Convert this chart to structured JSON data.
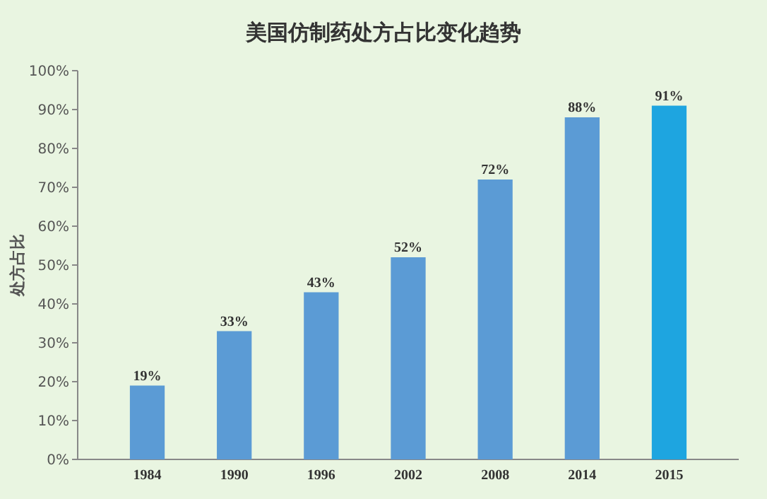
{
  "chart_data": {
    "type": "bar",
    "title": "美国仿制药处方占比变化趋势",
    "ylabel": "处方占比",
    "categories": [
      "1984",
      "1990",
      "1996",
      "2002",
      "2008",
      "2014",
      "2015"
    ],
    "values": [
      19,
      33,
      43,
      52,
      72,
      88,
      91
    ],
    "colors": [
      "#5b9bd5",
      "#5b9bd5",
      "#5b9bd5",
      "#5b9bd5",
      "#5b9bd5",
      "#5b9bd5",
      "#1ea5e0"
    ],
    "value_labels": [
      "19%",
      "33%",
      "43%",
      "52%",
      "72%",
      "88%",
      "91%"
    ],
    "ylim": [
      0,
      100
    ],
    "yticks": [
      {
        "value": 0,
        "label": "0%"
      },
      {
        "value": 10,
        "label": "10%"
      },
      {
        "value": 20,
        "label": "20%"
      },
      {
        "value": 30,
        "label": "30%"
      },
      {
        "value": 40,
        "label": "40%"
      },
      {
        "value": 50,
        "label": "50%"
      },
      {
        "value": 60,
        "label": "60%"
      },
      {
        "value": 70,
        "label": "70%"
      },
      {
        "value": 80,
        "label": "80%"
      },
      {
        "value": 90,
        "label": "90%"
      },
      {
        "value": 100,
        "label": "100%"
      }
    ],
    "grid": false
  }
}
